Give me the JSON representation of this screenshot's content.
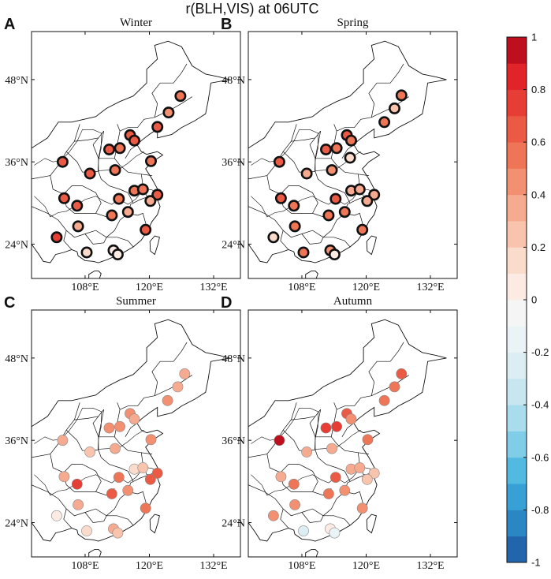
{
  "figure_title": "r(BLH,VIS) at 06UTC",
  "chart_data": {
    "type": "scatter",
    "variable": "correlation coefficient r(BLH,VIS) at 06UTC",
    "x_ticks": [
      "108°E",
      "120°E",
      "132°E"
    ],
    "y_ticks": [
      "48°N",
      "36°N",
      "24°N"
    ],
    "colorbar": {
      "ticks": [
        "1",
        "0.8",
        "0.6",
        "0.4",
        "0.2",
        "0",
        "-0.2",
        "-0.4",
        "-0.6",
        "-0.8",
        "-1"
      ],
      "range": [
        -1,
        1
      ],
      "step": 0.1,
      "colors": [
        "#2166ac",
        "#2b86c4",
        "#37a1d6",
        "#52b9e0",
        "#7fcde6",
        "#a9dcec",
        "#c8e6f0",
        "#dcedf3",
        "#eaf3f6",
        "#f5f5f5",
        "#fbebe3",
        "#fbdccc",
        "#f8c4ad",
        "#f6ab90",
        "#f39072",
        "#ef7557",
        "#ea5a44",
        "#e63e34",
        "#e0242a",
        "#bd0f1e"
      ]
    },
    "panels": [
      {
        "label": "A",
        "title": "Winter",
        "bold_outline": true,
        "stations": [
          {
            "lon": 125.8,
            "lat": 45.6,
            "r": 0.55
          },
          {
            "lon": 123.6,
            "lat": 43.2,
            "r": 0.45
          },
          {
            "lon": 121.5,
            "lat": 41.1,
            "r": 0.6
          },
          {
            "lon": 116.4,
            "lat": 39.9,
            "r": 0.65
          },
          {
            "lon": 117.2,
            "lat": 39.1,
            "r": 0.6
          },
          {
            "lon": 114.5,
            "lat": 38.0,
            "r": 0.55
          },
          {
            "lon": 112.5,
            "lat": 37.8,
            "r": 0.6
          },
          {
            "lon": 120.3,
            "lat": 36.1,
            "r": 0.5
          },
          {
            "lon": 103.8,
            "lat": 36.0,
            "r": 0.65
          },
          {
            "lon": 108.9,
            "lat": 34.3,
            "r": 0.6
          },
          {
            "lon": 113.6,
            "lat": 34.8,
            "r": 0.5
          },
          {
            "lon": 117.2,
            "lat": 31.8,
            "r": 0.55
          },
          {
            "lon": 118.8,
            "lat": 32.0,
            "r": 0.55
          },
          {
            "lon": 121.5,
            "lat": 31.2,
            "r": 0.6
          },
          {
            "lon": 104.1,
            "lat": 30.7,
            "r": 0.65
          },
          {
            "lon": 114.3,
            "lat": 30.6,
            "r": 0.5
          },
          {
            "lon": 120.2,
            "lat": 30.3,
            "r": 0.35
          },
          {
            "lon": 106.5,
            "lat": 29.6,
            "r": 0.6
          },
          {
            "lon": 116.0,
            "lat": 28.7,
            "r": 0.3
          },
          {
            "lon": 113.0,
            "lat": 28.2,
            "r": 0.55
          },
          {
            "lon": 106.7,
            "lat": 26.6,
            "r": 0.3
          },
          {
            "lon": 119.3,
            "lat": 26.1,
            "r": 0.6
          },
          {
            "lon": 102.7,
            "lat": 25.0,
            "r": 0.7
          },
          {
            "lon": 108.3,
            "lat": 22.8,
            "r": 0.15
          },
          {
            "lon": 113.3,
            "lat": 23.1,
            "r": 0.05
          },
          {
            "lon": 114.1,
            "lat": 22.5,
            "r": 0.0
          }
        ]
      },
      {
        "label": "B",
        "title": "Spring",
        "bold_outline": true,
        "stations": [
          {
            "lon": 126.6,
            "lat": 45.7,
            "r": 0.55
          },
          {
            "lon": 125.3,
            "lat": 43.8,
            "r": 0.2
          },
          {
            "lon": 123.4,
            "lat": 41.8,
            "r": 0.55
          },
          {
            "lon": 116.4,
            "lat": 39.9,
            "r": 0.65
          },
          {
            "lon": 117.2,
            "lat": 39.1,
            "r": 0.55
          },
          {
            "lon": 114.5,
            "lat": 38.0,
            "r": 0.55
          },
          {
            "lon": 112.5,
            "lat": 37.8,
            "r": 0.65
          },
          {
            "lon": 117.0,
            "lat": 36.6,
            "r": 0.15
          },
          {
            "lon": 103.8,
            "lat": 36.0,
            "r": 0.6
          },
          {
            "lon": 108.9,
            "lat": 34.3,
            "r": 0.3
          },
          {
            "lon": 113.6,
            "lat": 34.8,
            "r": 0.4
          },
          {
            "lon": 117.2,
            "lat": 31.8,
            "r": 0.3
          },
          {
            "lon": 118.8,
            "lat": 32.0,
            "r": 0.3
          },
          {
            "lon": 121.5,
            "lat": 31.2,
            "r": 0.3
          },
          {
            "lon": 104.1,
            "lat": 30.7,
            "r": 0.6
          },
          {
            "lon": 114.3,
            "lat": 30.6,
            "r": 0.6
          },
          {
            "lon": 120.2,
            "lat": 30.3,
            "r": 0.35
          },
          {
            "lon": 106.5,
            "lat": 29.6,
            "r": 0.55
          },
          {
            "lon": 116.0,
            "lat": 28.7,
            "r": 0.5
          },
          {
            "lon": 113.0,
            "lat": 28.2,
            "r": 0.55
          },
          {
            "lon": 106.7,
            "lat": 26.6,
            "r": 0.5
          },
          {
            "lon": 119.3,
            "lat": 26.1,
            "r": 0.5
          },
          {
            "lon": 102.7,
            "lat": 25.0,
            "r": 0.1
          },
          {
            "lon": 108.3,
            "lat": 22.8,
            "r": 0.5
          },
          {
            "lon": 113.3,
            "lat": 23.1,
            "r": 0.45
          },
          {
            "lon": 114.1,
            "lat": 22.5,
            "r": 0.05
          }
        ]
      },
      {
        "label": "C",
        "title": "Summer",
        "bold_outline": false,
        "stations": [
          {
            "lon": 126.6,
            "lat": 45.7,
            "r": 0.3
          },
          {
            "lon": 125.3,
            "lat": 43.8,
            "r": 0.35
          },
          {
            "lon": 123.4,
            "lat": 41.8,
            "r": 0.45
          },
          {
            "lon": 116.4,
            "lat": 39.9,
            "r": 0.4
          },
          {
            "lon": 117.2,
            "lat": 39.1,
            "r": 0.35
          },
          {
            "lon": 114.5,
            "lat": 38.0,
            "r": 0.4
          },
          {
            "lon": 112.5,
            "lat": 37.8,
            "r": 0.45
          },
          {
            "lon": 120.3,
            "lat": 36.1,
            "r": 0.4
          },
          {
            "lon": 103.8,
            "lat": 36.0,
            "r": 0.35
          },
          {
            "lon": 108.9,
            "lat": 34.3,
            "r": 0.2
          },
          {
            "lon": 113.6,
            "lat": 34.8,
            "r": 0.3
          },
          {
            "lon": 117.2,
            "lat": 31.8,
            "r": 0.1
          },
          {
            "lon": 118.8,
            "lat": 32.0,
            "r": 0.2
          },
          {
            "lon": 121.5,
            "lat": 31.2,
            "r": 0.65
          },
          {
            "lon": 104.1,
            "lat": 30.7,
            "r": 0.35
          },
          {
            "lon": 114.3,
            "lat": 30.6,
            "r": 0.55
          },
          {
            "lon": 120.2,
            "lat": 30.3,
            "r": 0.6
          },
          {
            "lon": 106.5,
            "lat": 29.6,
            "r": 0.75
          },
          {
            "lon": 116.0,
            "lat": 28.7,
            "r": 0.4
          },
          {
            "lon": 113.0,
            "lat": 28.2,
            "r": 0.6
          },
          {
            "lon": 106.7,
            "lat": 26.6,
            "r": 0.35
          },
          {
            "lon": 119.3,
            "lat": 26.1,
            "r": 0.5
          },
          {
            "lon": 102.7,
            "lat": 25.0,
            "r": 0.05
          },
          {
            "lon": 108.3,
            "lat": 22.8,
            "r": 0.1
          },
          {
            "lon": 113.3,
            "lat": 23.1,
            "r": 0.3
          },
          {
            "lon": 114.1,
            "lat": 22.5,
            "r": 0.2
          }
        ]
      },
      {
        "label": "D",
        "title": "Autumn",
        "bold_outline": false,
        "stations": [
          {
            "lon": 126.6,
            "lat": 45.7,
            "r": 0.6
          },
          {
            "lon": 125.3,
            "lat": 43.8,
            "r": 0.55
          },
          {
            "lon": 123.4,
            "lat": 41.8,
            "r": 0.5
          },
          {
            "lon": 116.4,
            "lat": 39.9,
            "r": 0.6
          },
          {
            "lon": 117.2,
            "lat": 39.1,
            "r": 0.45
          },
          {
            "lon": 114.5,
            "lat": 38.0,
            "r": 0.7
          },
          {
            "lon": 112.5,
            "lat": 37.8,
            "r": 0.7
          },
          {
            "lon": 120.3,
            "lat": 36.1,
            "r": 0.5
          },
          {
            "lon": 103.8,
            "lat": 36.0,
            "r": 0.9
          },
          {
            "lon": 108.9,
            "lat": 34.3,
            "r": 0.35
          },
          {
            "lon": 113.6,
            "lat": 34.8,
            "r": 0.3
          },
          {
            "lon": 117.2,
            "lat": 31.8,
            "r": 0.35
          },
          {
            "lon": 118.8,
            "lat": 32.0,
            "r": 0.35
          },
          {
            "lon": 121.5,
            "lat": 31.2,
            "r": 0.25
          },
          {
            "lon": 104.1,
            "lat": 30.7,
            "r": 0.35
          },
          {
            "lon": 114.3,
            "lat": 30.6,
            "r": 0.65
          },
          {
            "lon": 120.2,
            "lat": 30.3,
            "r": 0.25
          },
          {
            "lon": 106.5,
            "lat": 29.6,
            "r": 0.5
          },
          {
            "lon": 116.0,
            "lat": 28.7,
            "r": 0.4
          },
          {
            "lon": 113.0,
            "lat": 28.2,
            "r": 0.5
          },
          {
            "lon": 106.7,
            "lat": 26.6,
            "r": 0.45
          },
          {
            "lon": 119.3,
            "lat": 26.1,
            "r": 0.4
          },
          {
            "lon": 102.7,
            "lat": 25.0,
            "r": 0.45
          },
          {
            "lon": 108.3,
            "lat": 22.8,
            "r": -0.25
          },
          {
            "lon": 113.3,
            "lat": 23.1,
            "r": 0.05
          },
          {
            "lon": 114.1,
            "lat": 22.5,
            "r": -0.15
          }
        ]
      }
    ]
  }
}
